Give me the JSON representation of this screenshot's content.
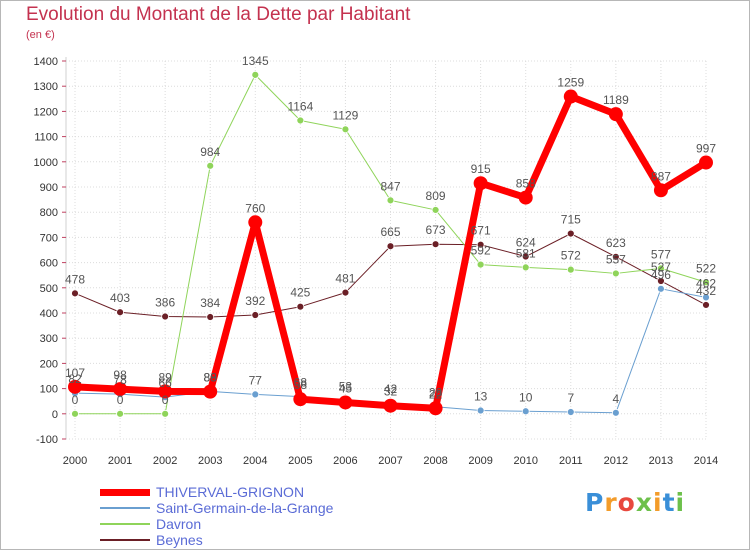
{
  "chart_data": {
    "type": "line",
    "title": "Evolution du Montant de la Dette par Habitant",
    "subtitle": "(en €)",
    "x": [
      "2000",
      "2001",
      "2002",
      "2003",
      "2004",
      "2005",
      "2006",
      "2007",
      "2008",
      "2009",
      "2010",
      "2011",
      "2012",
      "2013",
      "2014"
    ],
    "ylim": [
      -100,
      1400
    ],
    "yticks": [
      -100,
      0,
      100,
      200,
      300,
      400,
      500,
      600,
      700,
      800,
      900,
      1000,
      1100,
      1200,
      1300,
      1400
    ],
    "grid": true,
    "legend_position": "bottom-left",
    "series": [
      {
        "name": "THIVERVAL-GRIGNON",
        "color": "#ff0000",
        "values": [
          107,
          98,
          89,
          88,
          760,
          58,
          45,
          32,
          22,
          915,
          858,
          1259,
          1189,
          887,
          997
        ]
      },
      {
        "name": "Saint-Germain-de-la-Grange",
        "color": "#6a9fd0",
        "values": [
          82,
          78,
          66,
          89,
          77,
          68,
          53,
          42,
          28,
          13,
          10,
          7,
          4,
          496,
          462
        ]
      },
      {
        "name": "Davron",
        "color": "#8fd45a",
        "values": [
          0,
          0,
          0,
          984,
          1345,
          1164,
          1129,
          847,
          809,
          592,
          581,
          572,
          557,
          577,
          522
        ]
      },
      {
        "name": "Beynes",
        "color": "#6b1f26",
        "values": [
          478,
          403,
          386,
          384,
          392,
          425,
          481,
          665,
          673,
          671,
          624,
          715,
          623,
          527,
          432
        ]
      }
    ],
    "data_labels": [
      [
        "107",
        "98",
        "89",
        "88",
        "760",
        "58",
        "45",
        "32",
        "22",
        "915",
        "858",
        "1259",
        "1189",
        "887",
        "997"
      ],
      [
        "82",
        "78",
        "66",
        "89",
        "77",
        "68",
        "53",
        "42",
        "28",
        "13",
        "10",
        "7",
        "4",
        "496",
        "462"
      ],
      [
        "0",
        "0",
        "0",
        "984",
        "1345",
        "1164",
        "1129",
        "847",
        "809",
        "592",
        "581",
        "572",
        "557",
        "577",
        "522"
      ],
      [
        "478",
        "403",
        "386",
        "384",
        "392",
        "425",
        "481",
        "665",
        "673",
        "671",
        "624",
        "715",
        "623",
        "527",
        "432"
      ]
    ]
  },
  "logo": {
    "text": "Proxiti",
    "colors": [
      "#3a8fd8",
      "#f39c2a",
      "#e8483e",
      "#6dc04b",
      "#f39c2a",
      "#3a8fd8",
      "#6dc04b"
    ]
  }
}
